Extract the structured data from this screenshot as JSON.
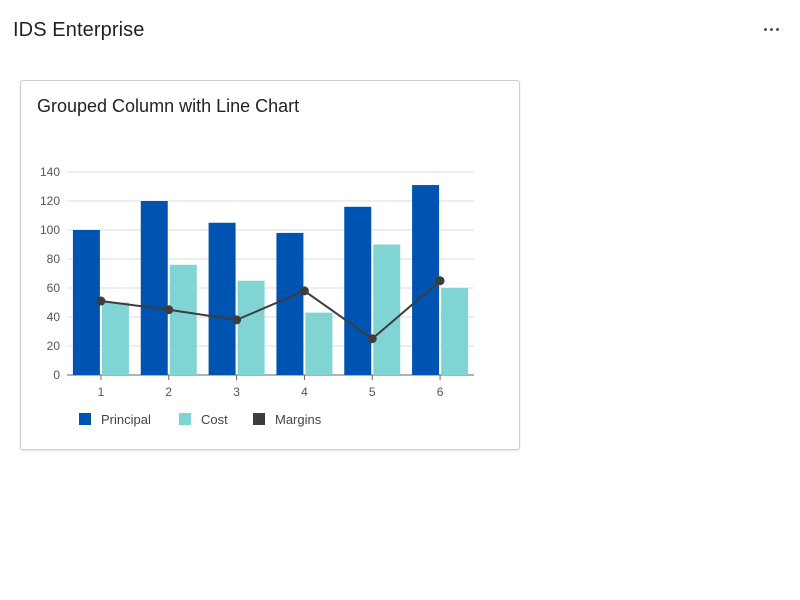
{
  "app": {
    "title": "IDS Enterprise",
    "more_icon": "more-horizontal-icon"
  },
  "colors": {
    "principal": "#0054b1",
    "cost": "#80d4d4",
    "margins": "#3d3d3d",
    "grid": "#dcdcdc",
    "axis": "#666666"
  },
  "chart_data": {
    "type": "bar",
    "title": "Grouped Column with Line Chart",
    "xlabel": "",
    "ylabel": "",
    "categories": [
      "1",
      "2",
      "3",
      "4",
      "5",
      "6"
    ],
    "ylim": [
      0,
      140
    ],
    "yticks": [
      0,
      20,
      40,
      60,
      80,
      100,
      120,
      140
    ],
    "grid": true,
    "legend_position": "bottom-left",
    "series": [
      {
        "name": "Principal",
        "type": "bar",
        "values": [
          100,
          120,
          105,
          98,
          116,
          131
        ]
      },
      {
        "name": "Cost",
        "type": "bar",
        "values": [
          50,
          76,
          65,
          43,
          90,
          60
        ]
      },
      {
        "name": "Margins",
        "type": "line",
        "values": [
          51,
          45,
          38,
          58,
          25,
          65
        ]
      }
    ]
  }
}
